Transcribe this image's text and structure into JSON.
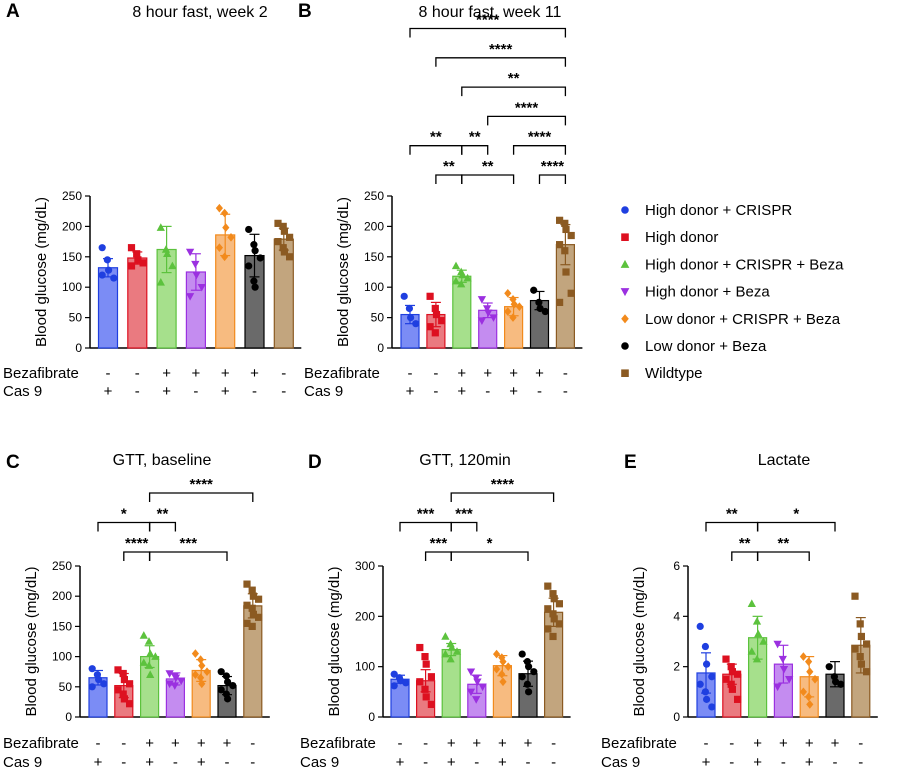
{
  "groups": [
    {
      "name": "High donor + CRISPR",
      "color": "#1f3fe0",
      "fill": "#7b8cf5",
      "marker": "circle"
    },
    {
      "name": "High donor",
      "color": "#dd1020",
      "fill": "#ea7a80",
      "marker": "square"
    },
    {
      "name": "High donor + CRISPR + Beza",
      "color": "#5cc23d",
      "fill": "#a6e08c",
      "marker": "triangle-up"
    },
    {
      "name": "High donor + Beza",
      "color": "#9b30e0",
      "fill": "#c48cf0",
      "marker": "triangle-down"
    },
    {
      "name": "Low donor + CRISPR + Beza",
      "color": "#f28a1c",
      "fill": "#f7bb80",
      "marker": "diamond"
    },
    {
      "name": "Low donor + Beza",
      "color": "#000000",
      "fill": "#6a6a6a",
      "marker": "circle"
    },
    {
      "name": "Wildtype",
      "color": "#8b5a22",
      "fill": "#c2a57e",
      "marker": "square"
    }
  ],
  "treatment_rows": {
    "labels": [
      "Bezafibrate",
      "Cas 9"
    ],
    "bezafibrate": [
      "-",
      "-",
      "+",
      "+",
      "+",
      "+",
      "-"
    ],
    "cas9": [
      "+",
      "-",
      "+",
      "-",
      "+",
      "-",
      "-"
    ]
  },
  "chart_data": [
    {
      "panel": "A",
      "type": "bar",
      "title": "8 hour fast, week 2",
      "ylabel": "Blood glucose (mg/dL)",
      "ylim": [
        0,
        250
      ],
      "yticks": [
        0,
        50,
        100,
        150,
        200,
        250
      ],
      "categories": [
        "High donor + CRISPR",
        "High donor",
        "High donor + CRISPR + Beza",
        "High donor + Beza",
        "Low donor + CRISPR + Beza",
        "Low donor + Beza",
        "Wildtype"
      ],
      "values": [
        132,
        148,
        162,
        125,
        186,
        152,
        179
      ],
      "errors": [
        15,
        10,
        38,
        30,
        34,
        35,
        18
      ],
      "points": [
        [
          165,
          145,
          128,
          115,
          120
        ],
        [
          165,
          155,
          145,
          140,
          135
        ],
        [
          198,
          162,
          155,
          135,
          108
        ],
        [
          158,
          138,
          120,
          100,
          85
        ],
        [
          230,
          222,
          198,
          182,
          165,
          150
        ],
        [
          195,
          170,
          160,
          148,
          135,
          110,
          100
        ],
        [
          205,
          200,
          192,
          182,
          175,
          165,
          158,
          150
        ]
      ],
      "significance": []
    },
    {
      "panel": "B",
      "type": "bar",
      "title": "8 hour fast, week 11",
      "ylabel": "Blood glucose (mg/dL)",
      "ylim": [
        0,
        250
      ],
      "yticks": [
        0,
        50,
        100,
        150,
        200,
        250
      ],
      "categories": [
        "High donor + CRISPR",
        "High donor",
        "High donor + CRISPR + Beza",
        "High donor + Beza",
        "Low donor + CRISPR + Beza",
        "Low donor + Beza",
        "Wildtype"
      ],
      "values": [
        55,
        55,
        118,
        62,
        68,
        78,
        170
      ],
      "errors": [
        15,
        20,
        10,
        12,
        15,
        15,
        33
      ],
      "points": [
        [
          85,
          65,
          50,
          40
        ],
        [
          85,
          65,
          55,
          45,
          35,
          25
        ],
        [
          135,
          125,
          120,
          115,
          110,
          105
        ],
        [
          80,
          65,
          58,
          50,
          45
        ],
        [
          90,
          80,
          72,
          68,
          60,
          50
        ],
        [
          95,
          75,
          65,
          60
        ],
        [
          210,
          205,
          195,
          185,
          170,
          160,
          125,
          90,
          75
        ]
      ],
      "significance": [
        {
          "from": 0,
          "to": 6,
          "label": "****",
          "level": 7
        },
        {
          "from": 1,
          "to": 6,
          "label": "****",
          "level": 6
        },
        {
          "from": 2,
          "to": 6,
          "label": "**",
          "level": 5
        },
        {
          "from": 3,
          "to": 6,
          "label": "****",
          "level": 4
        },
        {
          "from": 0,
          "to": 2,
          "label": "**",
          "level": 3
        },
        {
          "from": 2,
          "to": 3,
          "label": "**",
          "level": 3
        },
        {
          "from": 4,
          "to": 6,
          "label": "****",
          "level": 3
        },
        {
          "from": 1,
          "to": 2,
          "label": "**",
          "level": 2
        },
        {
          "from": 2,
          "to": 4,
          "label": "**",
          "level": 2
        },
        {
          "from": 5,
          "to": 6,
          "label": "****",
          "level": 2
        }
      ]
    },
    {
      "panel": "C",
      "type": "bar",
      "title": "GTT, baseline",
      "ylabel": "Blood glucose (mg/dL)",
      "ylim": [
        0,
        250
      ],
      "yticks": [
        0,
        50,
        100,
        150,
        200,
        250
      ],
      "categories": [
        "High donor + CRISPR",
        "High donor",
        "High donor + CRISPR + Beza",
        "High donor + Beza",
        "Low donor + CRISPR + Beza",
        "Low donor + Beza",
        "Wildtype"
      ],
      "values": [
        65,
        52,
        100,
        63,
        77,
        52,
        184
      ],
      "errors": [
        12,
        20,
        18,
        10,
        18,
        15,
        20
      ],
      "points": [
        [
          80,
          70,
          62,
          55,
          50
        ],
        [
          78,
          72,
          62,
          55,
          45,
          38,
          30,
          22
        ],
        [
          135,
          125,
          105,
          100,
          90,
          85,
          70
        ],
        [
          72,
          68,
          65,
          60,
          55,
          52
        ],
        [
          105,
          95,
          85,
          75,
          70,
          65,
          55
        ],
        [
          75,
          68,
          58,
          52,
          45,
          38,
          30
        ],
        [
          220,
          210,
          200,
          195,
          185,
          180,
          170,
          165,
          155,
          150
        ]
      ],
      "significance": [
        {
          "from": 2,
          "to": 6,
          "label": "****",
          "level": 4
        },
        {
          "from": 0,
          "to": 2,
          "label": "*",
          "level": 3
        },
        {
          "from": 2,
          "to": 3,
          "label": "**",
          "level": 3
        },
        {
          "from": 1,
          "to": 2,
          "label": "****",
          "level": 2
        },
        {
          "from": 2,
          "to": 5,
          "label": "***",
          "level": 2
        }
      ]
    },
    {
      "panel": "D",
      "type": "bar",
      "title": "GTT, 120min",
      "ylabel": "Blood glucose (mg/dL)",
      "ylim": [
        0,
        300
      ],
      "yticks": [
        0,
        100,
        200,
        300
      ],
      "categories": [
        "High donor + CRISPR",
        "High donor",
        "High donor + CRISPR + Beza",
        "High donor + Beza",
        "Low donor + CRISPR + Beza",
        "Low donor + Beza",
        "Wildtype"
      ],
      "values": [
        75,
        72,
        134,
        65,
        102,
        86,
        208
      ],
      "errors": [
        8,
        22,
        12,
        18,
        20,
        25,
        28
      ],
      "points": [
        [
          85,
          78,
          72,
          68,
          62
        ],
        [
          138,
          120,
          105,
          80,
          70,
          55,
          40,
          25
        ],
        [
          160,
          145,
          138,
          130,
          125,
          115
        ],
        [
          90,
          78,
          70,
          60,
          50,
          35
        ],
        [
          125,
          118,
          110,
          100,
          95,
          85,
          70
        ],
        [
          125,
          110,
          100,
          90,
          80,
          65,
          50
        ],
        [
          260,
          245,
          235,
          225,
          215,
          205,
          195,
          185,
          175,
          160
        ]
      ],
      "significance": [
        {
          "from": 2,
          "to": 6,
          "label": "****",
          "level": 4
        },
        {
          "from": 0,
          "to": 2,
          "label": "***",
          "level": 3
        },
        {
          "from": 2,
          "to": 3,
          "label": "***",
          "level": 3
        },
        {
          "from": 1,
          "to": 2,
          "label": "***",
          "level": 2
        },
        {
          "from": 2,
          "to": 5,
          "label": "*",
          "level": 2
        }
      ]
    },
    {
      "panel": "E",
      "type": "bar",
      "title": "Lactate",
      "ylabel": "Blood glucose (mg/dL)",
      "ylim": [
        0,
        6
      ],
      "yticks": [
        0,
        2,
        4,
        6
      ],
      "categories": [
        "High donor + CRISPR",
        "High donor",
        "High donor + CRISPR + Beza",
        "High donor + Beza",
        "Low donor + CRISPR + Beza",
        "Low donor + Beza",
        "Wildtype"
      ],
      "values": [
        1.75,
        1.7,
        3.15,
        2.1,
        1.6,
        1.7,
        2.85
      ],
      "errors": [
        0.8,
        0.4,
        0.85,
        0.75,
        0.8,
        0.5,
        1.1
      ],
      "points": [
        [
          3.6,
          2.8,
          2.1,
          1.6,
          1.3,
          1.0,
          0.7,
          0.4
        ],
        [
          2.3,
          2.0,
          1.8,
          1.7,
          1.5,
          1.3,
          1.1,
          0.7
        ],
        [
          4.5,
          3.8,
          3.3,
          3.0,
          2.6,
          2.3
        ],
        [
          2.9,
          2.3,
          1.9,
          1.5,
          1.2
        ],
        [
          2.4,
          2.2,
          1.8,
          1.5,
          1.0,
          0.8,
          0.5
        ],
        [
          2.0,
          1.6,
          1.4,
          1.3
        ],
        [
          4.8,
          3.7,
          3.2,
          2.9,
          2.7,
          2.4,
          2.1,
          1.8
        ]
      ],
      "significance": [
        {
          "from": 0,
          "to": 2,
          "label": "**",
          "level": 3
        },
        {
          "from": 2,
          "to": 5,
          "label": "*",
          "level": 3
        },
        {
          "from": 1,
          "to": 2,
          "label": "**",
          "level": 2
        },
        {
          "from": 2,
          "to": 4,
          "label": "**",
          "level": 2
        }
      ]
    }
  ]
}
